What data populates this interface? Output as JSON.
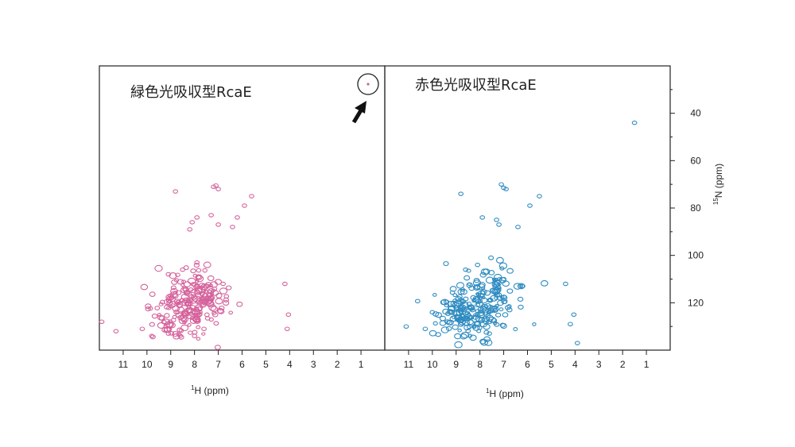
{
  "chart_data": [
    {
      "type": "scatter",
      "title": "緑色光吸収型RcaE",
      "xlabel": "1H (ppm)",
      "xlabel_sup": "1",
      "xlabel_main": "H (ppm)",
      "ylabel": "",
      "x_reversed": true,
      "xlim": [
        12,
        0
      ],
      "ylim": [
        20,
        140
      ],
      "y_reversed": true,
      "xticks": [
        11,
        10,
        9,
        8,
        7,
        6,
        5,
        4,
        3,
        2,
        1
      ],
      "color": "#d4619b",
      "annotation": "circled peak with arrow",
      "circled_peak": {
        "x": 0.6,
        "y": 27
      },
      "peaks": [
        {
          "x": 7.2,
          "y": 71
        },
        {
          "x": 7.0,
          "y": 72
        },
        {
          "x": 7.1,
          "y": 70.5
        },
        {
          "x": 8.8,
          "y": 73
        },
        {
          "x": 5.6,
          "y": 75
        },
        {
          "x": 5.9,
          "y": 79
        },
        {
          "x": 7.9,
          "y": 84
        },
        {
          "x": 7.3,
          "y": 83
        },
        {
          "x": 6.2,
          "y": 84
        },
        {
          "x": 8.1,
          "y": 86
        },
        {
          "x": 8.2,
          "y": 89
        },
        {
          "x": 7.0,
          "y": 87
        },
        {
          "x": 6.4,
          "y": 88
        },
        {
          "x": 4.2,
          "y": 112
        },
        {
          "x": 4.05,
          "y": 125
        },
        {
          "x": 4.1,
          "y": 131
        },
        {
          "x": 11.9,
          "y": 128
        },
        {
          "x": 11.3,
          "y": 132
        },
        {
          "x": 10.2,
          "y": 131
        },
        {
          "x": 9.8,
          "y": 134
        },
        {
          "x": 9.1,
          "y": 133
        },
        {
          "x": 8.0,
          "y": 134
        },
        {
          "x": 7.6,
          "y": 131
        },
        {
          "x": 7.9,
          "y": 103
        },
        {
          "x": 8.5,
          "y": 106
        },
        {
          "x": 9.1,
          "y": 108
        },
        {
          "x": 6.8,
          "y": 112
        }
      ],
      "clusters": [
        {
          "x": 8.1,
          "y": 121,
          "sx": 0.7,
          "sy": 7,
          "n": 140
        },
        {
          "x": 7.5,
          "y": 116,
          "sx": 0.4,
          "sy": 4,
          "n": 45
        },
        {
          "x": 8.9,
          "y": 124,
          "sx": 0.5,
          "sy": 6,
          "n": 45
        }
      ]
    },
    {
      "type": "scatter",
      "title": "赤色光吸収型RcaE",
      "xlabel": "1H (ppm)",
      "xlabel_sup": "1",
      "xlabel_main": "H (ppm)",
      "ylabel": "15N (ppm)",
      "ylabel_sup": "15",
      "ylabel_main": "N (ppm)",
      "x_reversed": true,
      "xlim": [
        12,
        0
      ],
      "ylim": [
        20,
        140
      ],
      "y_reversed": true,
      "xticks": [
        11,
        10,
        9,
        8,
        7,
        6,
        5,
        4,
        3,
        2,
        1
      ],
      "yticks": [
        40,
        60,
        80,
        100,
        120
      ],
      "color": "#2e8bc0",
      "peaks": [
        {
          "x": 1.5,
          "y": 44
        },
        {
          "x": 7.1,
          "y": 70
        },
        {
          "x": 6.9,
          "y": 72
        },
        {
          "x": 7.0,
          "y": 71.5
        },
        {
          "x": 8.8,
          "y": 74
        },
        {
          "x": 5.5,
          "y": 75
        },
        {
          "x": 5.9,
          "y": 79
        },
        {
          "x": 7.9,
          "y": 84
        },
        {
          "x": 7.3,
          "y": 85
        },
        {
          "x": 7.2,
          "y": 87
        },
        {
          "x": 6.4,
          "y": 88
        },
        {
          "x": 4.4,
          "y": 112
        },
        {
          "x": 4.05,
          "y": 125
        },
        {
          "x": 4.2,
          "y": 129
        },
        {
          "x": 3.9,
          "y": 137
        },
        {
          "x": 10.3,
          "y": 131
        },
        {
          "x": 11.1,
          "y": 130
        },
        {
          "x": 10.0,
          "y": 124
        },
        {
          "x": 9.4,
          "y": 121
        },
        {
          "x": 7.6,
          "y": 133
        },
        {
          "x": 7.0,
          "y": 110
        },
        {
          "x": 6.2,
          "y": 113
        },
        {
          "x": 8.1,
          "y": 104
        },
        {
          "x": 8.6,
          "y": 106
        }
      ],
      "clusters": [
        {
          "x": 8.0,
          "y": 122,
          "sx": 0.8,
          "sy": 7,
          "n": 150
        },
        {
          "x": 7.3,
          "y": 116,
          "sx": 0.5,
          "sy": 5,
          "n": 50
        },
        {
          "x": 8.7,
          "y": 126,
          "sx": 0.5,
          "sy": 6,
          "n": 45
        }
      ]
    }
  ]
}
